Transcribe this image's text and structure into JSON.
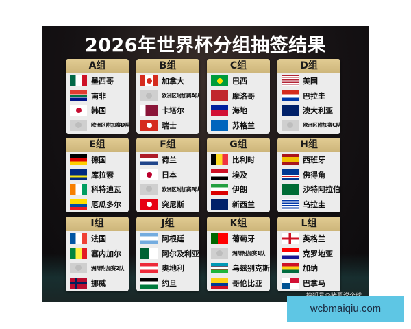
{
  "title": "2026年世界杯分组抽签结果",
  "groups": [
    {
      "label": "A组",
      "teams": [
        {
          "name": "墨西哥",
          "flag": "mexico"
        },
        {
          "name": "南非",
          "flag": "south-africa"
        },
        {
          "name": "韩国",
          "flag": "korea"
        },
        {
          "name": "欧洲区附加赛D队",
          "flag": "placeholder"
        }
      ]
    },
    {
      "label": "B组",
      "teams": [
        {
          "name": "加拿大",
          "flag": "canada"
        },
        {
          "name": "欧洲区附加赛A队",
          "flag": "placeholder"
        },
        {
          "name": "卡塔尔",
          "flag": "qatar"
        },
        {
          "name": "瑞士",
          "flag": "switzerland"
        }
      ]
    },
    {
      "label": "C组",
      "teams": [
        {
          "name": "巴西",
          "flag": "brazil"
        },
        {
          "name": "摩洛哥",
          "flag": "morocco"
        },
        {
          "name": "海地",
          "flag": "haiti"
        },
        {
          "name": "苏格兰",
          "flag": "scotland"
        }
      ]
    },
    {
      "label": "D组",
      "teams": [
        {
          "name": "美国",
          "flag": "usa"
        },
        {
          "name": "巴拉圭",
          "flag": "paraguay"
        },
        {
          "name": "澳大利亚",
          "flag": "australia"
        },
        {
          "name": "欧洲区附加赛C队",
          "flag": "placeholder"
        }
      ]
    },
    {
      "label": "E组",
      "teams": [
        {
          "name": "德国",
          "flag": "germany"
        },
        {
          "name": "库拉索",
          "flag": "curacao"
        },
        {
          "name": "科特迪瓦",
          "flag": "ivory-coast"
        },
        {
          "name": "厄瓜多尔",
          "flag": "ecuador"
        }
      ]
    },
    {
      "label": "F组",
      "teams": [
        {
          "name": "荷兰",
          "flag": "netherlands"
        },
        {
          "name": "日本",
          "flag": "japan"
        },
        {
          "name": "欧洲区附加赛B队",
          "flag": "placeholder"
        },
        {
          "name": "突尼斯",
          "flag": "tunisia"
        }
      ]
    },
    {
      "label": "G组",
      "teams": [
        {
          "name": "比利时",
          "flag": "belgium"
        },
        {
          "name": "埃及",
          "flag": "egypt"
        },
        {
          "name": "伊朗",
          "flag": "iran"
        },
        {
          "name": "新西兰",
          "flag": "new-zealand"
        }
      ]
    },
    {
      "label": "H组",
      "teams": [
        {
          "name": "西班牙",
          "flag": "spain"
        },
        {
          "name": "佛得角",
          "flag": "cape-verde"
        },
        {
          "name": "沙特阿拉伯",
          "flag": "saudi-arabia"
        },
        {
          "name": "乌拉圭",
          "flag": "uruguay"
        }
      ]
    },
    {
      "label": "I组",
      "teams": [
        {
          "name": "法国",
          "flag": "france"
        },
        {
          "name": "塞内加尔",
          "flag": "senegal"
        },
        {
          "name": "洲际附加赛2队",
          "flag": "placeholder"
        },
        {
          "name": "挪威",
          "flag": "norway"
        }
      ]
    },
    {
      "label": "J组",
      "teams": [
        {
          "name": "阿根廷",
          "flag": "argentina"
        },
        {
          "name": "阿尔及利亚",
          "flag": "algeria"
        },
        {
          "name": "奥地利",
          "flag": "austria"
        },
        {
          "name": "约旦",
          "flag": "jordan"
        }
      ]
    },
    {
      "label": "K组",
      "teams": [
        {
          "name": "葡萄牙",
          "flag": "portugal"
        },
        {
          "name": "洲际附加赛1队",
          "flag": "placeholder"
        },
        {
          "name": "乌兹别克斯坦",
          "flag": "uzbekistan"
        },
        {
          "name": "哥伦比亚",
          "flag": "colombia"
        }
      ]
    },
    {
      "label": "L组",
      "teams": [
        {
          "name": "英格兰",
          "flag": "england"
        },
        {
          "name": "克罗地亚",
          "flag": "croatia"
        },
        {
          "name": "加纳",
          "flag": "ghana"
        },
        {
          "name": "巴拿马",
          "flag": "panama"
        }
      ]
    }
  ],
  "watermark": "搜狐号@猪哥说个球",
  "site_badge": "wcbmaiqiu.com"
}
